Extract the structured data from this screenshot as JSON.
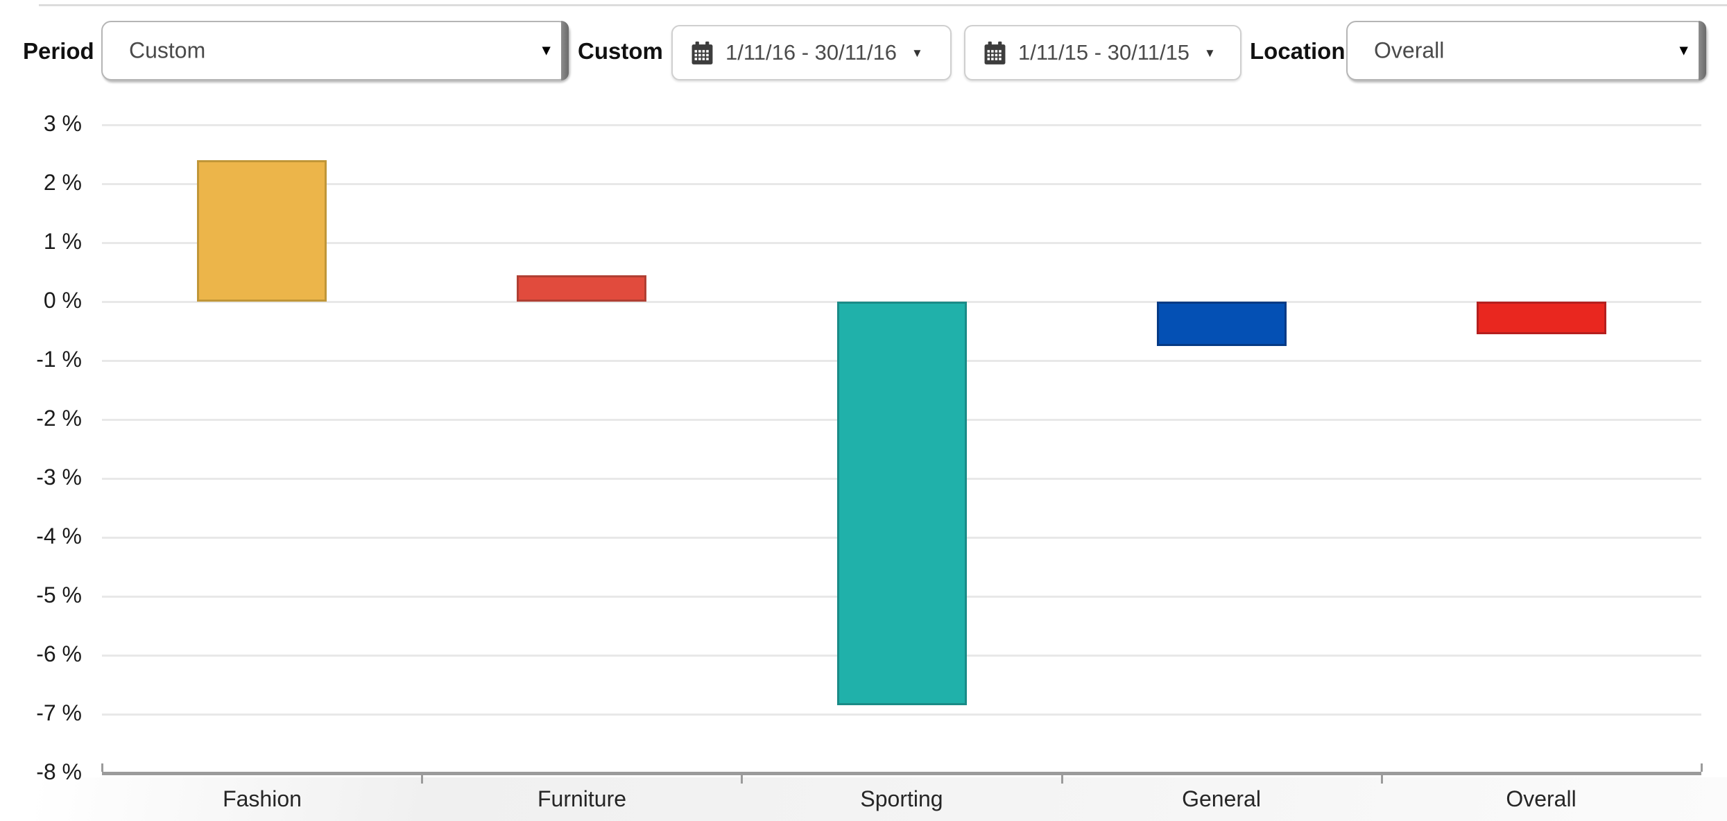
{
  "toolbar": {
    "period_label": "Period",
    "period_value": "Custom",
    "custom_label": "Custom",
    "date_range_1": "1/11/16 - 30/11/16",
    "date_range_2": "1/11/15 - 30/11/15",
    "location_label": "Location",
    "location_value": "Overall"
  },
  "chart_data": {
    "type": "bar",
    "categories": [
      "Fashion",
      "Furniture",
      "Sporting",
      "General",
      "Overall"
    ],
    "values": [
      2.4,
      0.45,
      -6.85,
      -0.75,
      -0.55
    ],
    "bar_colors": [
      "#ecb54a",
      "#e14b3d",
      "#20b1aa",
      "#0450b4",
      "#e9271f"
    ],
    "bar_border_colors": [
      "#c09638",
      "#b03f33",
      "#1a8b87",
      "#053a85",
      "#b51f1e"
    ],
    "title": "",
    "xlabel": "",
    "ylabel": "",
    "ylim": [
      -8,
      3
    ],
    "ytick_step": 1,
    "ytick_suffix": " %",
    "grid": true,
    "gridline_color": "#e8e8e8",
    "axis_color": "#9b9b9b",
    "legend": "none"
  }
}
